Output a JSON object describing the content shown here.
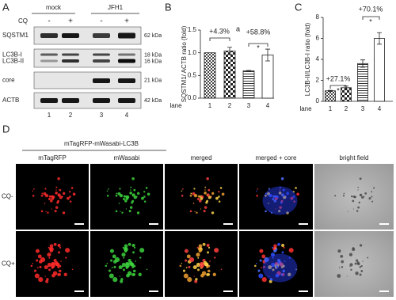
{
  "panel_a": {
    "letter": "A",
    "groups": [
      "mock",
      "JFH1"
    ],
    "treatment": "CQ",
    "signs": [
      "-",
      "+",
      "-",
      "+"
    ],
    "blots": [
      {
        "names": [
          "SQSTM1"
        ],
        "sizes": [
          "62 kDa"
        ]
      },
      {
        "names": [
          "LC3B-I",
          "LC3B-II"
        ],
        "sizes": [
          "18 kDa",
          "16 kDa"
        ]
      },
      {
        "names": [
          "core"
        ],
        "sizes": [
          "21 kDa"
        ]
      },
      {
        "names": [
          "ACTB"
        ],
        "sizes": [
          "42 kDa"
        ]
      }
    ],
    "lanes": [
      "1",
      "2",
      "3",
      "4"
    ]
  },
  "chart_data": [
    {
      "type": "bar",
      "panel": "B",
      "y_label": "SQSTM1/ ACTB ratio (fold)",
      "x_label": "lane",
      "categories": [
        "1",
        "2",
        "3",
        "4"
      ],
      "values": [
        1,
        1.04,
        0.6,
        0.95
      ],
      "errors": [
        0,
        0.08,
        0.01,
        0.13
      ],
      "ylim": [
        0,
        1.5
      ],
      "yticks": [
        {
          "value": 0,
          "label": "0.0"
        },
        0.5,
        {
          "value": 1,
          "label": "1.0"
        },
        1.5
      ],
      "annotations": [
        "+4.3%",
        "a",
        "+58.8%",
        "*"
      ]
    },
    {
      "type": "bar",
      "panel": "C",
      "y_label": "LC3B-II/LC3B-I ratio (fold)",
      "x_label": "lane",
      "categories": [
        "1",
        "2",
        "3",
        "4"
      ],
      "values": [
        1,
        1.3,
        3.6,
        6.0
      ],
      "errors": [
        0.05,
        0.15,
        0.35,
        0.55
      ],
      "ylim": [
        0,
        8
      ],
      "yticks": [
        0,
        2,
        4,
        6,
        8
      ],
      "annotations": [
        "+27.1%",
        "*",
        "+70.1%",
        "*"
      ]
    }
  ],
  "panel_d": {
    "letter": "D",
    "title": "mTagRFP-mWasabi-LC3B",
    "columns": [
      "mTagRFP",
      "mWasabi",
      "merged",
      "merged + core",
      "bright field"
    ],
    "rows": [
      "CQ-",
      "CQ+"
    ]
  }
}
